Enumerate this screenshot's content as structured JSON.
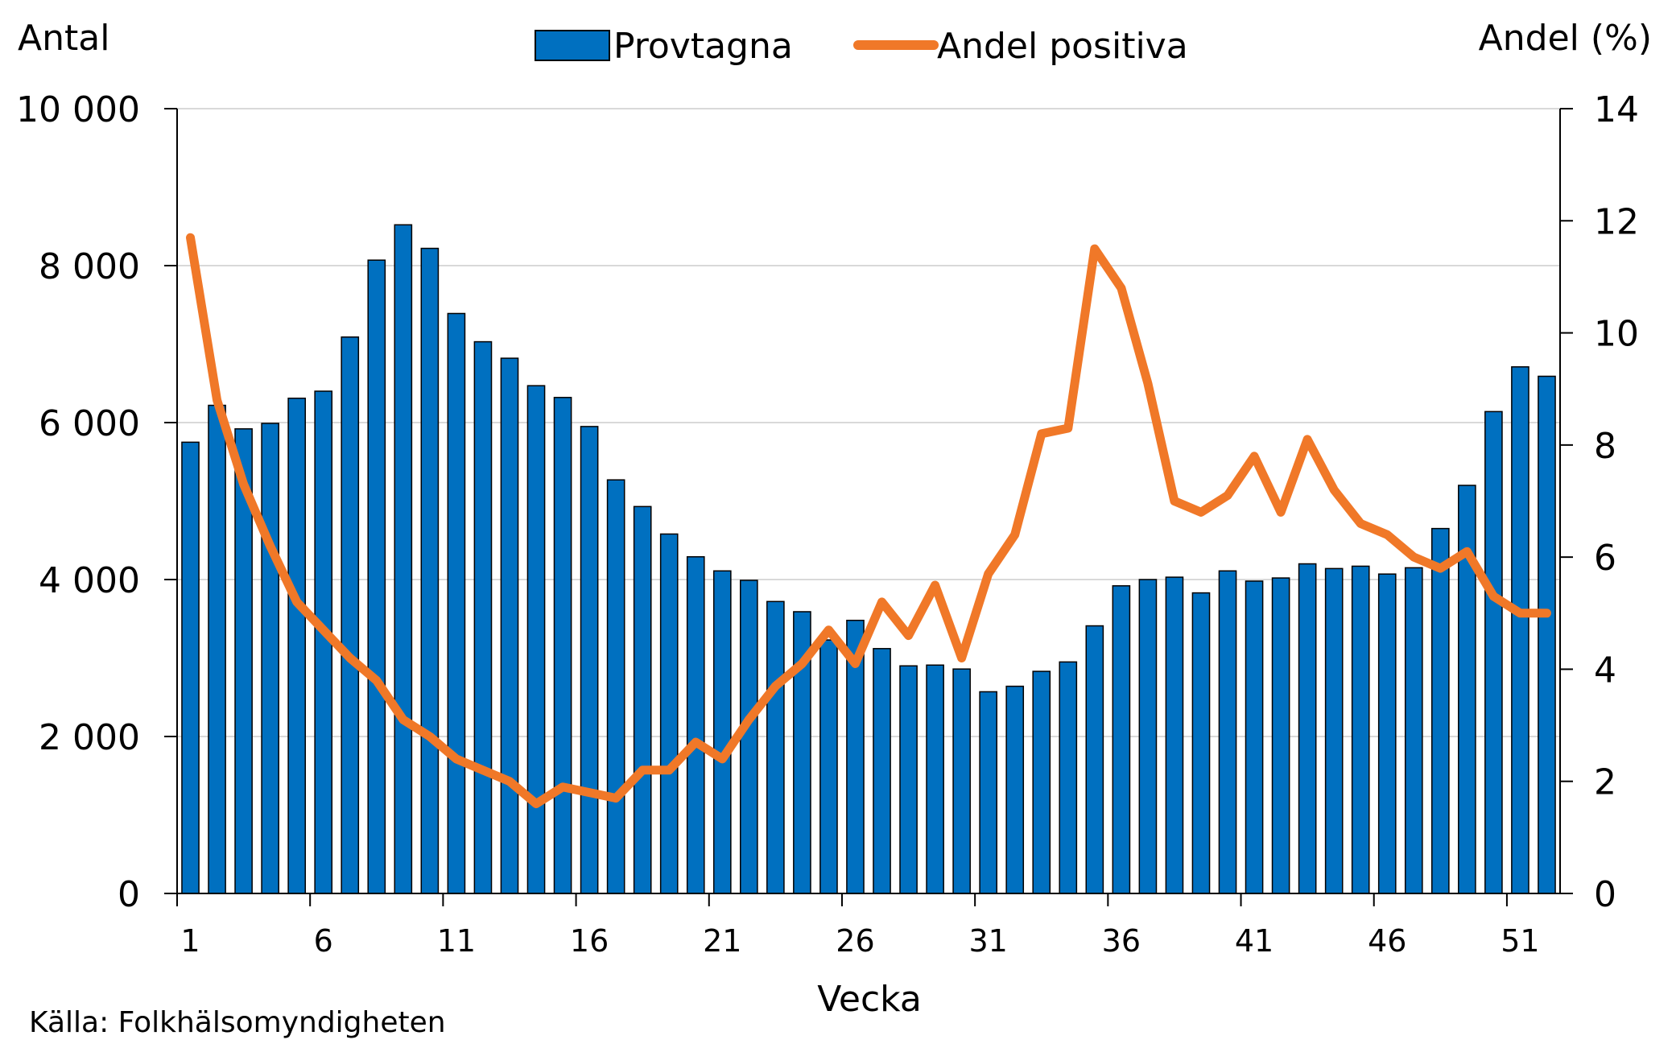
{
  "chart_data": {
    "type": "bar",
    "legend_placement": "top-center",
    "grid": true,
    "xlabel": "Vecka",
    "ylabel_left": "Antal",
    "ylabel_right": "Andel (%)",
    "source": "Källa: Folkhälsomyndigheten",
    "ylim_left": [
      0,
      10000
    ],
    "ylim_right": [
      0,
      14
    ],
    "y_ticks_left": [
      0,
      2000,
      4000,
      6000,
      8000,
      10000
    ],
    "y_tick_labels_left": [
      "0",
      "2 000",
      "4 000",
      "6 000",
      "8 000",
      "10 000"
    ],
    "y_ticks_right": [
      0,
      2,
      4,
      6,
      8,
      10,
      12,
      14
    ],
    "y_tick_labels_right": [
      "0",
      "2",
      "4",
      "6",
      "8",
      "10",
      "12",
      "14"
    ],
    "x_tick_labels": [
      "1",
      "6",
      "11",
      "16",
      "21",
      "26",
      "31",
      "36",
      "41",
      "46",
      "51"
    ],
    "x": [
      1,
      2,
      3,
      4,
      5,
      6,
      7,
      8,
      9,
      10,
      11,
      12,
      13,
      14,
      15,
      16,
      17,
      18,
      19,
      20,
      21,
      22,
      23,
      24,
      25,
      26,
      27,
      28,
      29,
      30,
      31,
      32,
      33,
      34,
      35,
      36,
      37,
      38,
      39,
      40,
      41,
      42,
      43,
      44,
      45,
      46,
      47,
      48,
      49,
      50,
      51,
      52
    ],
    "series": [
      {
        "name": "Provtagna",
        "type": "bar",
        "axis": "left",
        "color": "#0070C0",
        "values": [
          5750,
          6220,
          5920,
          5990,
          6310,
          6400,
          7090,
          8070,
          8520,
          8220,
          7390,
          7030,
          6820,
          6470,
          6320,
          5950,
          5270,
          4930,
          4580,
          4290,
          4110,
          3990,
          3720,
          3590,
          3230,
          3480,
          3120,
          2900,
          2910,
          2860,
          2570,
          2640,
          2830,
          2950,
          3410,
          3920,
          4000,
          4030,
          3830,
          4110,
          3980,
          4020,
          4200,
          4140,
          4170,
          4070,
          4150,
          4650,
          5200,
          6140,
          6710,
          6590
        ]
      },
      {
        "name": "Andel positiva",
        "type": "line",
        "axis": "right",
        "color": "#F07828",
        "values": [
          11.7,
          8.8,
          7.3,
          6.2,
          5.2,
          4.7,
          4.2,
          3.8,
          3.1,
          2.8,
          2.4,
          2.2,
          2.0,
          1.6,
          1.9,
          1.8,
          1.7,
          2.2,
          2.2,
          2.7,
          2.4,
          3.1,
          3.7,
          4.1,
          4.7,
          4.1,
          5.2,
          4.6,
          5.5,
          4.2,
          5.7,
          6.4,
          8.2,
          8.3,
          11.5,
          10.8,
          9.1,
          7.0,
          6.8,
          7.1,
          7.8,
          6.8,
          8.1,
          7.2,
          6.6,
          6.4,
          6.0,
          5.8,
          6.1,
          5.3,
          5.0,
          5.0
        ]
      }
    ]
  }
}
